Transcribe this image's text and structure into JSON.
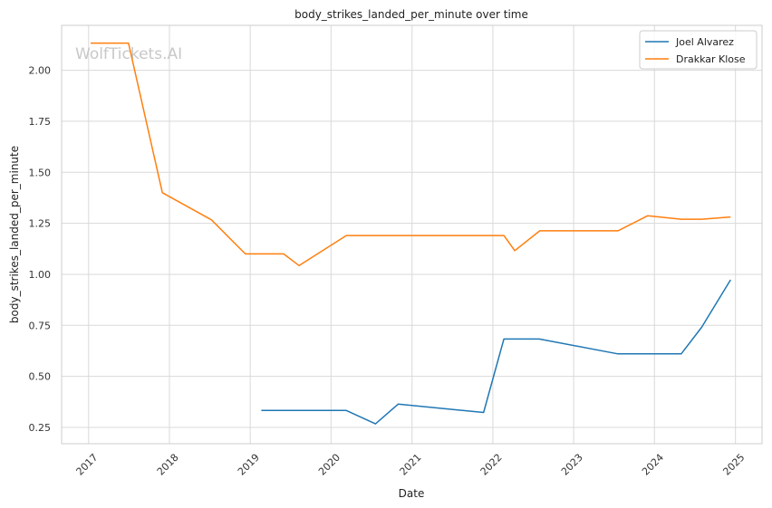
{
  "chart_data": {
    "type": "line",
    "title": "body_strikes_landed_per_minute over time",
    "xlabel": "Date",
    "ylabel": "body_strikes_landed_per_minute",
    "x_ticks": [
      "2017",
      "2018",
      "2019",
      "2020",
      "2021",
      "2022",
      "2023",
      "2024",
      "2025"
    ],
    "y_ticks": [
      "0.25",
      "0.50",
      "0.75",
      "1.00",
      "1.25",
      "1.50",
      "1.75",
      "2.00"
    ],
    "xlim": [
      "2016-09-01",
      "2025-05-01"
    ],
    "ylim": [
      0.17,
      2.22
    ],
    "grid": true,
    "legend_position": "top-right",
    "watermark": "WolfTickets.AI",
    "series": [
      {
        "name": "Joel Alvarez",
        "color": "#1f77b4",
        "points": [
          [
            "2019-02-20",
            0.333
          ],
          [
            "2020-03-10",
            0.333
          ],
          [
            "2020-07-20",
            0.267
          ],
          [
            "2020-10-30",
            0.364
          ],
          [
            "2021-11-20",
            0.323
          ],
          [
            "2022-02-20",
            0.683
          ],
          [
            "2022-07-30",
            0.683
          ],
          [
            "2023-07-20",
            0.61
          ],
          [
            "2024-05-01",
            0.61
          ],
          [
            "2024-08-01",
            0.74
          ],
          [
            "2024-12-10",
            0.973
          ]
        ]
      },
      {
        "name": "Drakkar Klose",
        "color": "#ff7f0e",
        "points": [
          [
            "2017-01-10",
            2.133
          ],
          [
            "2017-06-30",
            2.133
          ],
          [
            "2017-11-30",
            1.4
          ],
          [
            "2018-07-10",
            1.267
          ],
          [
            "2018-12-10",
            1.1
          ],
          [
            "2019-06-01",
            1.1
          ],
          [
            "2019-08-10",
            1.043
          ],
          [
            "2020-03-10",
            1.19
          ],
          [
            "2022-02-20",
            1.19
          ],
          [
            "2022-04-10",
            1.116
          ],
          [
            "2022-08-01",
            1.213
          ],
          [
            "2023-07-20",
            1.213
          ],
          [
            "2023-12-01",
            1.287
          ],
          [
            "2024-05-01",
            1.27
          ],
          [
            "2024-08-01",
            1.27
          ],
          [
            "2024-12-10",
            1.281
          ]
        ]
      }
    ]
  }
}
